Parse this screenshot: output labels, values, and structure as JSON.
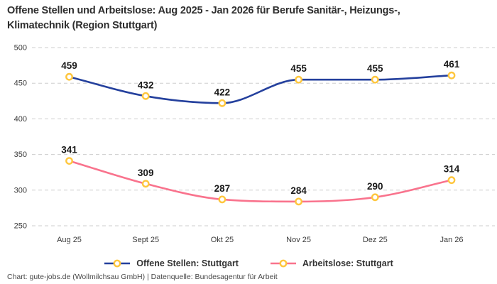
{
  "title": "Offene Stellen und Arbeitslose: Aug 2025 - Jan 2026 für Berufe Sanitär-, Heizungs-,\nKlimatechnik (Region Stuttgart)",
  "footer": "Chart: gute-jobs.de (Wollmilchsau GmbH) | Datenquelle: Bundesagentur für Arbeit",
  "colors": {
    "open_positions_line": "#24409d",
    "unemployed_line": "#f9738d",
    "marker_ring": "#fec63d",
    "marker_fill": "#ffffff",
    "gridline": "#cdcdcd",
    "tick_label": "#3b3b3b",
    "data_label": "#191919"
  },
  "chart_data": {
    "type": "line",
    "title": "Offene Stellen und Arbeitslose: Aug 2025 - Jan 2026 für Berufe Sanitär-, Heizungs-, Klimatechnik (Region Stuttgart)",
    "categories": [
      "Aug 25",
      "Sept 25",
      "Okt 25",
      "Nov 25",
      "Dez 25",
      "Jan 26"
    ],
    "series": [
      {
        "name": "Offene Stellen: Stuttgart",
        "color": "#24409d",
        "values": [
          459,
          432,
          422,
          455,
          455,
          461
        ]
      },
      {
        "name": "Arbeitslose: Stuttgart",
        "color": "#f9738d",
        "values": [
          341,
          309,
          287,
          284,
          290,
          314
        ]
      }
    ],
    "xlabel": "",
    "ylabel": "",
    "ylim": [
      250,
      500
    ],
    "y_ticks": [
      500,
      450,
      400,
      350,
      300,
      250
    ],
    "grid": "horizontal-dashed",
    "data_labels": true,
    "curve": "monotone",
    "legend_position": "bottom"
  }
}
